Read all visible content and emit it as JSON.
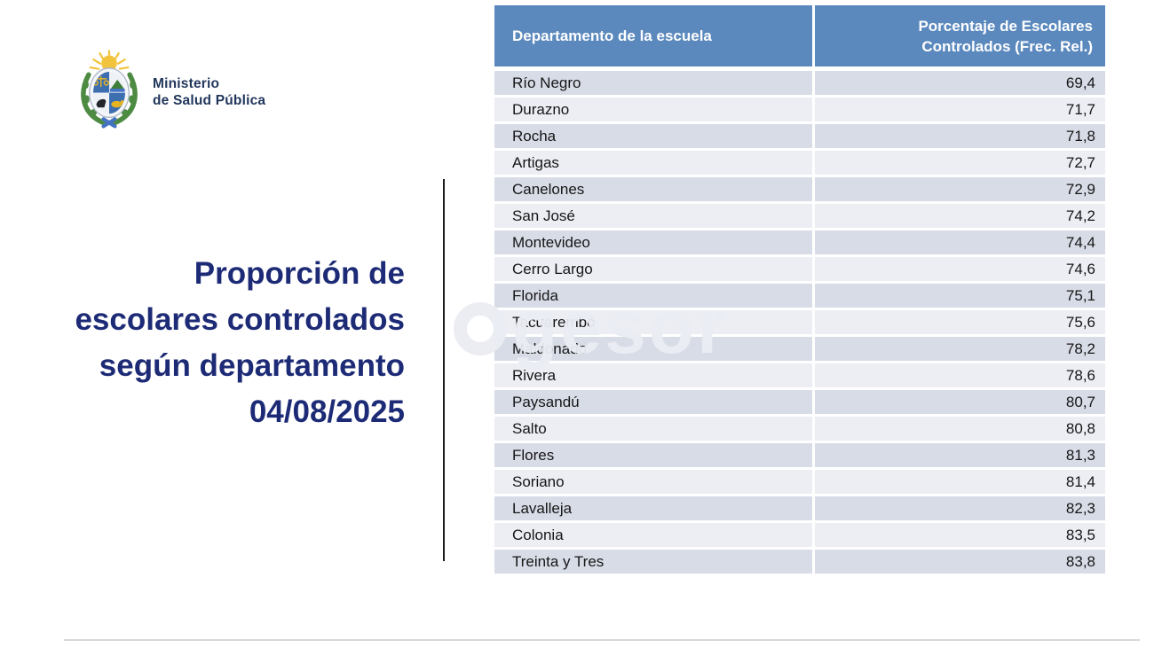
{
  "brand": {
    "line1": "Ministerio",
    "line2": "de Salud Pública",
    "logo_icon": "uruguay-coat-of-arms",
    "text_color": "#21365c"
  },
  "title": {
    "line1": "Proporción de",
    "line2": "escolares controlados",
    "line3": "según departamento",
    "line4": "04/08/2025",
    "color": "#1d2b76"
  },
  "watermark": {
    "text": "gesor"
  },
  "table": {
    "header": {
      "col1": "Departamento de la escuela",
      "col2_line1": "Porcentaje de Escolares",
      "col2_line2": "Controlados (Frec. Rel.)",
      "bg_color": "#5b89bd",
      "text_color": "#ffffff"
    },
    "row_colors": {
      "odd": "#d8dce7",
      "even": "#eceef4"
    },
    "rows": [
      {
        "dept": "Río Negro",
        "pct": "69,4"
      },
      {
        "dept": "Durazno",
        "pct": "71,7"
      },
      {
        "dept": "Rocha",
        "pct": "71,8"
      },
      {
        "dept": "Artigas",
        "pct": "72,7"
      },
      {
        "dept": "Canelones",
        "pct": "72,9"
      },
      {
        "dept": "San José",
        "pct": "74,2"
      },
      {
        "dept": "Montevideo",
        "pct": "74,4"
      },
      {
        "dept": "Cerro Largo",
        "pct": "74,6"
      },
      {
        "dept": "Florida",
        "pct": "75,1"
      },
      {
        "dept": "Tacuarembó",
        "pct": "75,6"
      },
      {
        "dept": "Maldonado",
        "pct": "78,2"
      },
      {
        "dept": "Rivera",
        "pct": "78,6"
      },
      {
        "dept": "Paysandú",
        "pct": "80,7"
      },
      {
        "dept": "Salto",
        "pct": "80,8"
      },
      {
        "dept": "Flores",
        "pct": "81,3"
      },
      {
        "dept": "Soriano",
        "pct": "81,4"
      },
      {
        "dept": "Lavalleja",
        "pct": "82,3"
      },
      {
        "dept": "Colonia",
        "pct": "83,5"
      },
      {
        "dept": "Treinta y Tres",
        "pct": "83,8"
      }
    ]
  },
  "chart_data": {
    "type": "table",
    "title": "Proporción de escolares controlados según departamento 04/08/2025",
    "columns": [
      "Departamento de la escuela",
      "Porcentaje de Escolares Controlados (Frec. Rel.)"
    ],
    "categories": [
      "Río Negro",
      "Durazno",
      "Rocha",
      "Artigas",
      "Canelones",
      "San José",
      "Montevideo",
      "Cerro Largo",
      "Florida",
      "Tacuarembó",
      "Maldonado",
      "Rivera",
      "Paysandú",
      "Salto",
      "Flores",
      "Soriano",
      "Lavalleja",
      "Colonia",
      "Treinta y Tres"
    ],
    "values": [
      69.4,
      71.7,
      71.8,
      72.7,
      72.9,
      74.2,
      74.4,
      74.6,
      75.1,
      75.6,
      78.2,
      78.6,
      80.7,
      80.8,
      81.3,
      81.4,
      82.3,
      83.5,
      83.8
    ]
  }
}
